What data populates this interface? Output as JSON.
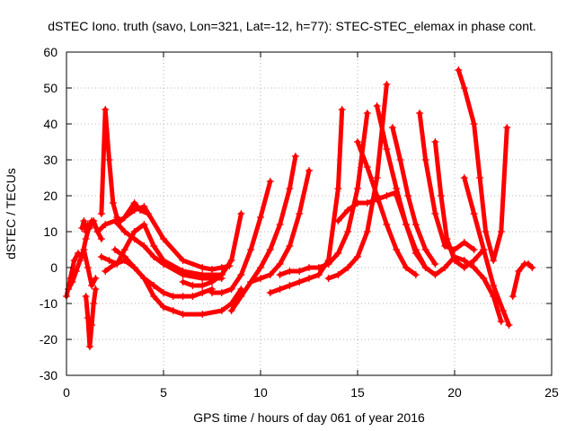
{
  "chart_data": {
    "type": "scatter",
    "title": "dSTEC Iono. truth (savo, Lon=321, Lat=-12, h=77): STEC-STEC_elemax in phase cont.",
    "xlabel": "GPS time / hours of day 061 of year 2016",
    "ylabel": "dSTEC  / TECUs",
    "xlim": [
      0,
      25
    ],
    "ylim": [
      -30,
      60
    ],
    "xticks": [
      0,
      5,
      10,
      15,
      20,
      25
    ],
    "yticks": [
      -30,
      -20,
      -10,
      0,
      10,
      20,
      30,
      40,
      50,
      60
    ],
    "grid": true,
    "legend": "none",
    "marker": "+",
    "color": "#ff0000",
    "series": [
      {
        "x": [
          0,
          0.2,
          0.4,
          0.6,
          0.8,
          1.0,
          1.2,
          1.4,
          1.6,
          1.8
        ],
        "y": [
          -8,
          -3,
          2,
          4,
          3,
          8,
          12,
          13,
          10,
          8
        ]
      },
      {
        "x": [
          0.1,
          0.3,
          0.5,
          0.7,
          0.9,
          1.1,
          1.3,
          1.5
        ],
        "y": [
          -6,
          -4,
          -1,
          2,
          5,
          0,
          -5,
          -3
        ]
      },
      {
        "x": [
          1.0,
          1.1,
          1.2,
          1.3,
          1.4,
          1.5
        ],
        "y": [
          -8,
          -14,
          -22,
          -16,
          -10,
          -6
        ]
      },
      {
        "x": [
          0.8,
          0.9,
          1.0,
          1.1,
          1.2,
          1.3,
          1.4
        ],
        "y": [
          11,
          13,
          10,
          12,
          11,
          13,
          12
        ]
      },
      {
        "x": [
          1.8,
          2.0,
          2.2,
          2.4,
          2.6,
          2.8,
          3.0,
          3.5,
          4.0,
          5.0,
          6.0,
          7.0,
          7.5,
          8.0,
          8.4
        ],
        "y": [
          15,
          44,
          30,
          18,
          14,
          13,
          14,
          16,
          17,
          8,
          2,
          0,
          -0.5,
          0,
          0.5
        ]
      },
      {
        "x": [
          1.6,
          2.0,
          2.5,
          3.0,
          3.5,
          4.0,
          4.5,
          5.0,
          6.0,
          7.0,
          8.0
        ],
        "y": [
          10,
          12,
          13,
          10,
          8,
          6,
          3,
          1,
          -2,
          -3,
          -3
        ]
      },
      {
        "x": [
          1.8,
          2.2,
          2.6,
          3.0,
          3.5,
          4.0,
          4.5,
          5.0,
          6.0,
          7.0,
          7.5,
          8.0
        ],
        "y": [
          3,
          2,
          1,
          5,
          10,
          12,
          6,
          2,
          -1,
          -2,
          -2,
          -2
        ]
      },
      {
        "x": [
          2.0,
          2.5,
          3.0,
          3.5,
          4.0,
          4.5,
          5.0,
          5.5,
          6.0,
          6.5,
          7.0,
          7.5
        ],
        "y": [
          -1,
          1,
          2,
          0,
          -3,
          -5,
          -7,
          -8,
          -8,
          -8,
          -7,
          -6
        ]
      },
      {
        "x": [
          2.5,
          3.0,
          3.5,
          4.0,
          4.5,
          5.0,
          5.5,
          6.0,
          7.0,
          8.0,
          8.5,
          9.0
        ],
        "y": [
          5,
          3,
          0,
          -3,
          -8,
          -11,
          -12,
          -13,
          -13,
          -12,
          -10,
          -6
        ]
      },
      {
        "x": [
          3.0,
          3.5,
          3.8,
          4.2
        ],
        "y": [
          14,
          18,
          16,
          15
        ]
      },
      {
        "x": [
          6.0,
          6.5,
          7.0,
          7.5,
          8.0,
          8.5,
          9.0
        ],
        "y": [
          -4,
          -5,
          -5,
          -4,
          -2,
          2,
          15
        ]
      },
      {
        "x": [
          7.5,
          8.0,
          8.5,
          9.0,
          9.5,
          10.0,
          10.5
        ],
        "y": [
          -7,
          -7,
          -6,
          -2,
          5,
          14,
          24
        ]
      },
      {
        "x": [
          8.5,
          9.0,
          9.5,
          10.0,
          10.5,
          11.0,
          11.5,
          11.8
        ],
        "y": [
          -12,
          -8,
          -4,
          0,
          5,
          12,
          22,
          31
        ]
      },
      {
        "x": [
          9.5,
          10.0,
          10.5,
          11.0,
          11.5,
          12.0,
          12.5
        ],
        "y": [
          -4,
          -3,
          -2,
          1,
          6,
          15,
          27
        ]
      },
      {
        "x": [
          10.5,
          11.0,
          11.5,
          12.0,
          12.5,
          13.0,
          13.5,
          14.0,
          14.2
        ],
        "y": [
          -7,
          -6,
          -5,
          -4,
          -3,
          -2,
          2,
          22,
          44
        ]
      },
      {
        "x": [
          11.0,
          11.5,
          12.0,
          12.5,
          13.0,
          13.5,
          14.0,
          14.5,
          15.0,
          15.5
        ],
        "y": [
          -2,
          -1,
          -1,
          0,
          0,
          1,
          4,
          10,
          22,
          43
        ]
      },
      {
        "x": [
          13.5,
          14.0,
          14.5,
          15.0,
          15.5,
          16.0,
          16.5
        ],
        "y": [
          -3,
          -2,
          0,
          3,
          10,
          25,
          51
        ]
      },
      {
        "x": [
          14.0,
          14.5,
          15.0,
          15.5,
          16.0,
          16.5,
          17.0
        ],
        "y": [
          13,
          16,
          18,
          18,
          19,
          20,
          21
        ]
      },
      {
        "x": [
          15.0,
          15.5,
          16.0,
          16.5,
          17.0,
          17.5,
          18.0
        ],
        "y": [
          35,
          28,
          20,
          12,
          5,
          0,
          -2
        ]
      },
      {
        "x": [
          16.0,
          16.5,
          17.0,
          17.5,
          18.0,
          18.5
        ],
        "y": [
          45,
          33,
          22,
          12,
          4,
          0
        ]
      },
      {
        "x": [
          16.8,
          17.2,
          17.6,
          18.0,
          18.5,
          19.0
        ],
        "y": [
          39,
          30,
          20,
          12,
          5,
          1
        ]
      },
      {
        "x": [
          17.0,
          17.5,
          18.0,
          18.5,
          19.0,
          19.5,
          20.0,
          20.5,
          21.0,
          21.5,
          22.0,
          22.4
        ],
        "y": [
          20,
          12,
          5,
          0,
          -2,
          0,
          3,
          2,
          0,
          -3,
          -8,
          -15
        ]
      },
      {
        "x": [
          18.2,
          18.5,
          19.0,
          19.5,
          20.0,
          20.5,
          21.0
        ],
        "y": [
          43,
          30,
          15,
          6,
          5,
          7,
          5
        ]
      },
      {
        "x": [
          19.0,
          19.3,
          19.6,
          20.0,
          20.5,
          21.0,
          21.5
        ],
        "y": [
          35,
          20,
          8,
          2,
          0,
          2,
          5
        ]
      },
      {
        "x": [
          20.2,
          20.5,
          21.0,
          21.3,
          21.6,
          22.0,
          22.4,
          22.7
        ],
        "y": [
          55,
          50,
          40,
          25,
          10,
          2,
          10,
          39
        ]
      },
      {
        "x": [
          20.5,
          21.0,
          21.5,
          22.0,
          22.5,
          22.8
        ],
        "y": [
          25,
          15,
          5,
          -5,
          -12,
          -16
        ]
      },
      {
        "x": [
          23.0,
          23.3,
          23.6,
          23.8,
          24.0
        ],
        "y": [
          -8,
          -1,
          1,
          1,
          0
        ]
      }
    ]
  }
}
